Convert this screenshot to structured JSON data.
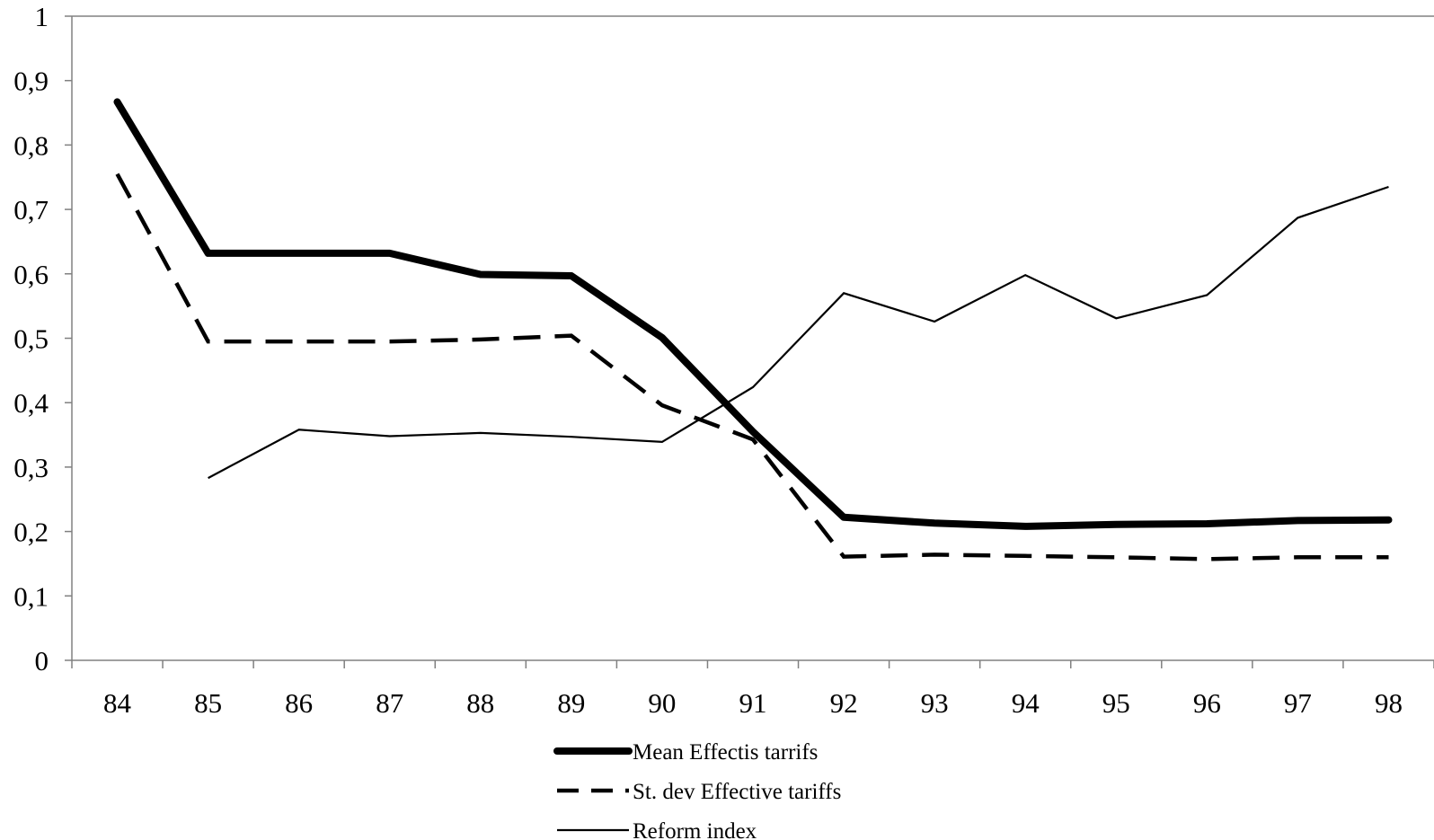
{
  "chart_data": {
    "type": "line",
    "title": "",
    "xlabel": "",
    "ylabel": "",
    "categories": [
      "84",
      "85",
      "86",
      "87",
      "88",
      "89",
      "90",
      "91",
      "92",
      "93",
      "94",
      "95",
      "96",
      "97",
      "98"
    ],
    "y_ticks": [
      "0",
      "0,1",
      "0,2",
      "0,3",
      "0,4",
      "0,5",
      "0,6",
      "0,7",
      "0,8",
      "0,9",
      "1"
    ],
    "ylim": [
      0,
      1
    ],
    "grid": false,
    "legend_position": "bottom",
    "series": [
      {
        "name": "Mean Effectis tarrifs",
        "style": "thick-solid",
        "color": "#000000",
        "values": [
          0.867,
          0.632,
          0.632,
          0.632,
          0.599,
          0.597,
          0.501,
          0.355,
          0.222,
          0.213,
          0.208,
          0.211,
          0.212,
          0.217,
          0.218
        ]
      },
      {
        "name": "St. dev Effective tariffs",
        "style": "dashed",
        "color": "#000000",
        "values": [
          0.755,
          0.495,
          0.495,
          0.495,
          0.498,
          0.504,
          0.396,
          0.343,
          0.161,
          0.164,
          0.162,
          0.16,
          0.157,
          0.16,
          0.16
        ]
      },
      {
        "name": "Reform index",
        "style": "thin-solid",
        "color": "#000000",
        "values": [
          null,
          0.283,
          0.358,
          0.348,
          0.353,
          0.347,
          0.339,
          0.424,
          0.57,
          0.526,
          0.598,
          0.531,
          0.567,
          0.687,
          0.735
        ]
      }
    ]
  }
}
